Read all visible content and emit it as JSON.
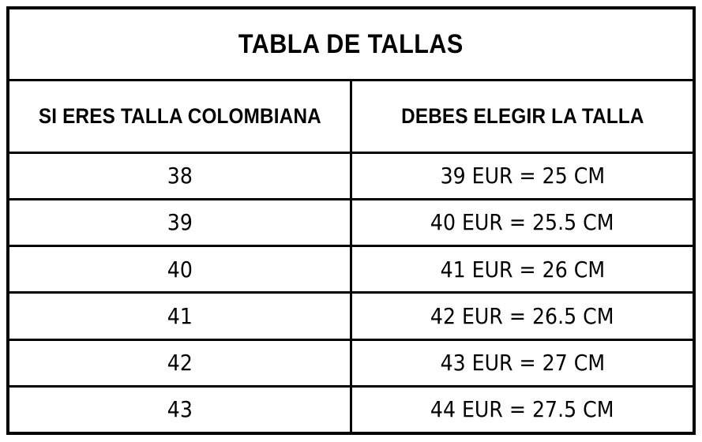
{
  "table": {
    "title": "TABLA DE TALLAS",
    "columns": [
      "SI ERES TALLA COLOMBIANA",
      "DEBES ELEGIR LA TALLA"
    ],
    "rows": [
      {
        "colombian_size": "38",
        "choose_size": "39 EUR = 25 CM"
      },
      {
        "colombian_size": "39",
        "choose_size": "40 EUR = 25.5 CM"
      },
      {
        "colombian_size": "40",
        "choose_size": "41 EUR = 26 CM"
      },
      {
        "colombian_size": "41",
        "choose_size": "42 EUR = 26.5 CM"
      },
      {
        "colombian_size": "42",
        "choose_size": "43 EUR = 27 CM"
      },
      {
        "colombian_size": "43",
        "choose_size": "44 EUR = 27.5 CM"
      }
    ],
    "colors": {
      "border": "#000000",
      "text": "#000000",
      "background": "#ffffff"
    }
  },
  "chart_data": {
    "type": "table",
    "title": "TABLA DE TALLAS",
    "columns": [
      "SI ERES TALLA COLOMBIANA",
      "DEBES ELEGIR LA TALLA"
    ],
    "rows": [
      [
        "38",
        "39 EUR = 25 CM"
      ],
      [
        "39",
        "40 EUR = 25.5 CM"
      ],
      [
        "40",
        "41 EUR = 26 CM"
      ],
      [
        "41",
        "42 EUR = 26.5 CM"
      ],
      [
        "42",
        "43 EUR = 27 CM"
      ],
      [
        "43",
        "44 EUR = 27.5 CM"
      ]
    ],
    "legend_position": "none",
    "grid": true
  }
}
